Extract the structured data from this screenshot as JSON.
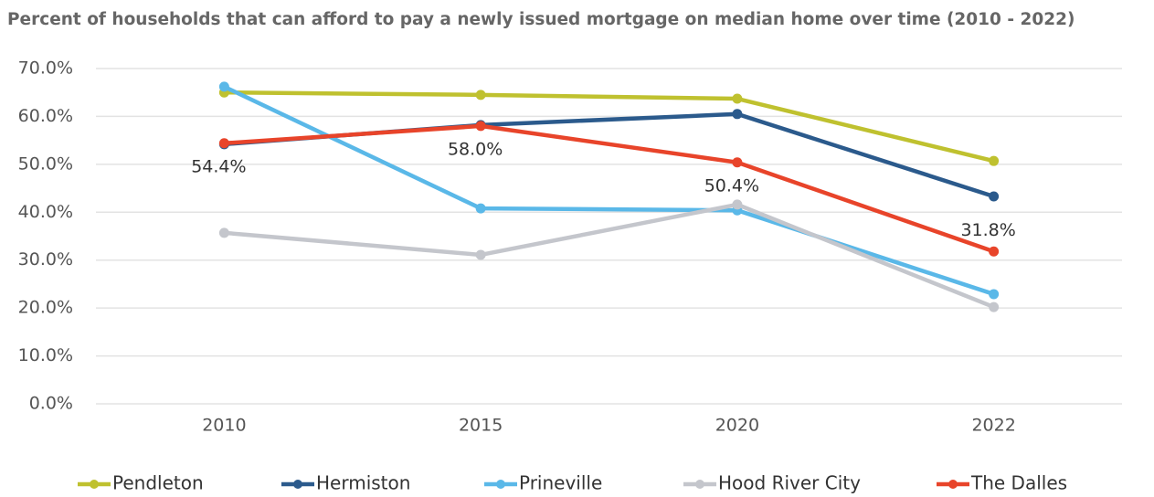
{
  "chart_data": {
    "type": "line",
    "title": "Percent of households that can afford to pay a newly issued mortgage on median home over time (2010 - 2022)",
    "categories": [
      "2010",
      "2015",
      "2020",
      "2022"
    ],
    "series": [
      {
        "name": "Pendleton",
        "color": "#bfc12f",
        "values": [
          65.0,
          64.5,
          63.7,
          50.7
        ]
      },
      {
        "name": "Hermiston",
        "color": "#2b5a8c",
        "values": [
          54.2,
          58.2,
          60.5,
          43.3
        ]
      },
      {
        "name": "Prineville",
        "color": "#5ab8e8",
        "values": [
          66.2,
          40.8,
          40.4,
          22.9
        ]
      },
      {
        "name": "Hood River City",
        "color": "#c4c6cc",
        "values": [
          35.7,
          31.1,
          41.6,
          20.2
        ]
      },
      {
        "name": "The Dalles",
        "color": "#e8442a",
        "values": [
          54.4,
          58.0,
          50.4,
          31.8
        ],
        "value_labels": [
          "54.4%",
          "58.0%",
          "50.4%",
          "31.8%"
        ]
      }
    ],
    "ylim": [
      0,
      70
    ],
    "yticks": [
      {
        "value": 0,
        "label": "0.0%"
      },
      {
        "value": 10,
        "label": "10.0%"
      },
      {
        "value": 20,
        "label": "20.0%"
      },
      {
        "value": 30,
        "label": "30.0%"
      },
      {
        "value": 40,
        "label": "40.0%"
      },
      {
        "value": 50,
        "label": "50.0%"
      },
      {
        "value": 60,
        "label": "60.0%"
      },
      {
        "value": 70,
        "label": "70.0%"
      }
    ],
    "grid": true,
    "legend": "bottom"
  }
}
